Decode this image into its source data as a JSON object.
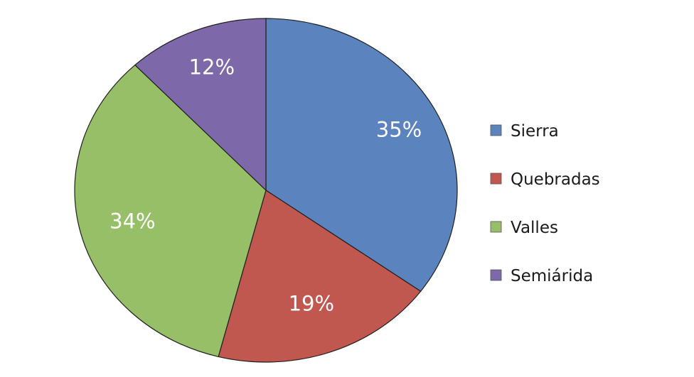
{
  "chart_data": {
    "type": "pie",
    "categories": [
      "Sierra",
      "Quebradas",
      "Valles",
      "Semiárida"
    ],
    "values": [
      35,
      19,
      34,
      12
    ],
    "labels": [
      "35%",
      "19%",
      "34%",
      "12%"
    ],
    "colors": [
      "#5b84be",
      "#c0584f",
      "#97bf68",
      "#7d68a9"
    ],
    "start_angle": "12 o'clock",
    "direction": "clockwise",
    "legend_position": "right"
  }
}
